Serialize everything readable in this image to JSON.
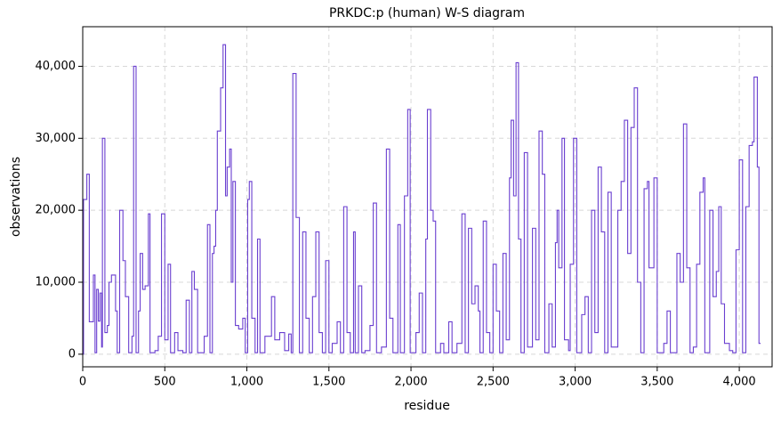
{
  "chart_data": {
    "type": "step",
    "title": "PRKDC:p (human) W-S diagram",
    "xlabel": "residue",
    "ylabel": "observations",
    "series": [
      {
        "name": "PRKDC",
        "color": "#6a3fd0",
        "x": [
          0,
          5,
          25,
          40,
          60,
          65,
          75,
          85,
          95,
          105,
          115,
          120,
          135,
          150,
          160,
          175,
          200,
          210,
          225,
          245,
          260,
          280,
          300,
          310,
          325,
          340,
          350,
          365,
          380,
          400,
          410,
          440,
          460,
          480,
          500,
          520,
          535,
          560,
          580,
          610,
          630,
          650,
          665,
          680,
          700,
          740,
          760,
          775,
          790,
          800,
          810,
          820,
          840,
          855,
          870,
          880,
          895,
          905,
          915,
          930,
          950,
          975,
          990,
          1005,
          1015,
          1030,
          1050,
          1065,
          1080,
          1110,
          1150,
          1170,
          1200,
          1230,
          1255,
          1270,
          1280,
          1300,
          1320,
          1340,
          1360,
          1380,
          1400,
          1420,
          1440,
          1460,
          1480,
          1500,
          1520,
          1550,
          1570,
          1590,
          1610,
          1630,
          1650,
          1660,
          1680,
          1700,
          1720,
          1750,
          1770,
          1790,
          1820,
          1850,
          1870,
          1890,
          1920,
          1935,
          1960,
          1980,
          1995,
          2030,
          2050,
          2070,
          2090,
          2100,
          2120,
          2135,
          2150,
          2180,
          2200,
          2230,
          2250,
          2280,
          2310,
          2330,
          2350,
          2370,
          2390,
          2410,
          2420,
          2440,
          2460,
          2480,
          2500,
          2520,
          2540,
          2560,
          2580,
          2600,
          2610,
          2625,
          2640,
          2655,
          2670,
          2690,
          2710,
          2740,
          2760,
          2780,
          2800,
          2815,
          2840,
          2860,
          2880,
          2890,
          2900,
          2920,
          2935,
          2960,
          2970,
          2990,
          3010,
          3040,
          3060,
          3080,
          3100,
          3120,
          3140,
          3160,
          3180,
          3200,
          3220,
          3260,
          3280,
          3300,
          3320,
          3340,
          3360,
          3380,
          3400,
          3420,
          3440,
          3450,
          3480,
          3500,
          3540,
          3560,
          3580,
          3620,
          3640,
          3660,
          3680,
          3700,
          3720,
          3740,
          3760,
          3780,
          3790,
          3820,
          3840,
          3860,
          3875,
          3890,
          3910,
          3940,
          3960,
          3980,
          4000,
          4020,
          4040,
          4060,
          4080,
          4090,
          4110,
          4120,
          4130
        ],
        "values": [
          0,
          21500,
          25000,
          4500,
          4500,
          11000,
          200,
          9000,
          4600,
          8500,
          1000,
          30000,
          3000,
          4000,
          10000,
          11000,
          6000,
          200,
          20000,
          13000,
          8000,
          200,
          2500,
          40000,
          200,
          6000,
          14000,
          9000,
          9500,
          19500,
          200,
          500,
          2500,
          19500,
          2000,
          12500,
          200,
          3000,
          500,
          200,
          7500,
          200,
          11500,
          9000,
          200,
          2500,
          18000,
          200,
          14000,
          15000,
          20000,
          31000,
          37000,
          43000,
          22000,
          26000,
          28500,
          10000,
          24000,
          4000,
          3500,
          5000,
          200,
          21500,
          24000,
          5000,
          200,
          16000,
          200,
          2500,
          8000,
          2000,
          3000,
          500,
          2800,
          200,
          39000,
          19000,
          200,
          17000,
          5000,
          200,
          8000,
          17000,
          3000,
          200,
          13000,
          200,
          1500,
          4500,
          200,
          20500,
          3000,
          200,
          17000,
          200,
          9500,
          200,
          500,
          4000,
          21000,
          200,
          1000,
          28500,
          5000,
          200,
          18000,
          200,
          22000,
          34000,
          200,
          3000,
          8500,
          200,
          16000,
          34000,
          20000,
          18500,
          200,
          1500,
          200,
          4500,
          200,
          1500,
          19500,
          200,
          17500,
          7000,
          9500,
          6000,
          200,
          18500,
          3000,
          200,
          12500,
          6000,
          200,
          14000,
          2000,
          24500,
          32500,
          22000,
          40500,
          16000,
          200,
          28000,
          1000,
          17500,
          2000,
          31000,
          25000,
          200,
          7000,
          1000,
          15500,
          20000,
          12000,
          30000,
          2000,
          500,
          12500,
          30000,
          200,
          5500,
          8000,
          200,
          20000,
          3000,
          26000,
          17000,
          200,
          22500,
          1000,
          20000,
          24000,
          32500,
          14000,
          31500,
          37000,
          10000,
          200,
          23000,
          24000,
          12000,
          24500,
          200,
          1500,
          6000,
          200,
          14000,
          10000,
          32000,
          12000,
          200,
          1000,
          12500,
          22500,
          24500,
          200,
          20000,
          8000,
          11500,
          20500,
          7000,
          1500,
          500,
          200,
          14500,
          27000,
          200,
          20500,
          29000,
          29500,
          38500,
          26000,
          1500,
          1500
        ]
      }
    ],
    "xlim": [
      0,
      4200
    ],
    "ylim": [
      -1750,
      45500
    ],
    "xticks": [
      0,
      500,
      {
        "value": 1000,
        "label": "1,000"
      },
      {
        "value": 1500,
        "label": "1,500"
      },
      {
        "value": 2000,
        "label": "2,000"
      },
      {
        "value": 2500,
        "label": "2,500"
      },
      {
        "value": 3000,
        "label": "3,000"
      },
      {
        "value": 3500,
        "label": "3,500"
      },
      {
        "value": 4000,
        "label": "4,000"
      }
    ],
    "yticks": [
      0,
      {
        "value": 10000,
        "label": "10,000"
      },
      {
        "value": 20000,
        "label": "20,000"
      },
      {
        "value": 30000,
        "label": "30,000"
      },
      {
        "value": 40000,
        "label": "40,000"
      }
    ],
    "grid": true
  }
}
